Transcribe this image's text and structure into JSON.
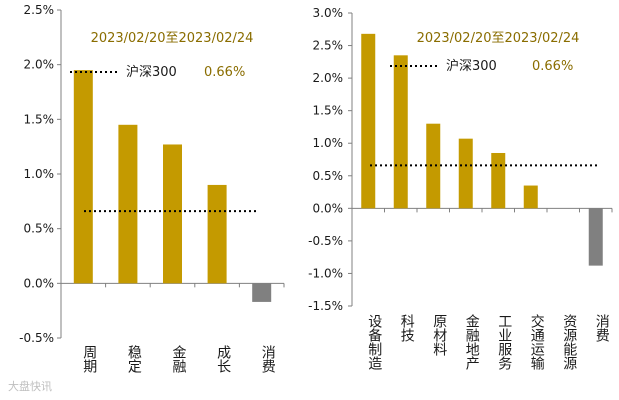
{
  "watermark": "大盘快讯",
  "chart_data": [
    {
      "type": "bar",
      "date_range": "2023/02/20至2023/02/24",
      "benchmark_label": "沪深300",
      "benchmark_value_label": "0.66%",
      "benchmark_value": 0.66,
      "categories": [
        "周期",
        "稳定",
        "金融",
        "成长",
        "消费"
      ],
      "values": [
        1.95,
        1.45,
        1.27,
        0.9,
        -0.17
      ],
      "ylim": [
        -0.5,
        2.5
      ],
      "yticks": [
        "-0.5%",
        "0.0%",
        "0.5%",
        "1.0%",
        "1.5%",
        "2.0%",
        "2.5%"
      ],
      "colors": {
        "positive": "#C49A00",
        "negative": "#808080",
        "benchmark": "#000000"
      }
    },
    {
      "type": "bar",
      "date_range": "2023/02/20至2023/02/24",
      "benchmark_label": "沪深300",
      "benchmark_value_label": "0.66%",
      "benchmark_value": 0.66,
      "categories": [
        "设备制造",
        "科技",
        "原材料",
        "金融地产",
        "工业服务",
        "交通运输",
        "资源能源",
        "消费"
      ],
      "values": [
        2.68,
        2.35,
        1.3,
        1.07,
        0.85,
        0.35,
        0.0,
        -0.88
      ],
      "ylim": [
        -1.5,
        3.0
      ],
      "yticks": [
        "-1.5%",
        "-1.0%",
        "-0.5%",
        "0.0%",
        "0.5%",
        "1.0%",
        "1.5%",
        "2.0%",
        "2.5%",
        "3.0%"
      ],
      "colors": {
        "positive": "#C49A00",
        "negative": "#808080",
        "benchmark": "#000000"
      }
    }
  ]
}
